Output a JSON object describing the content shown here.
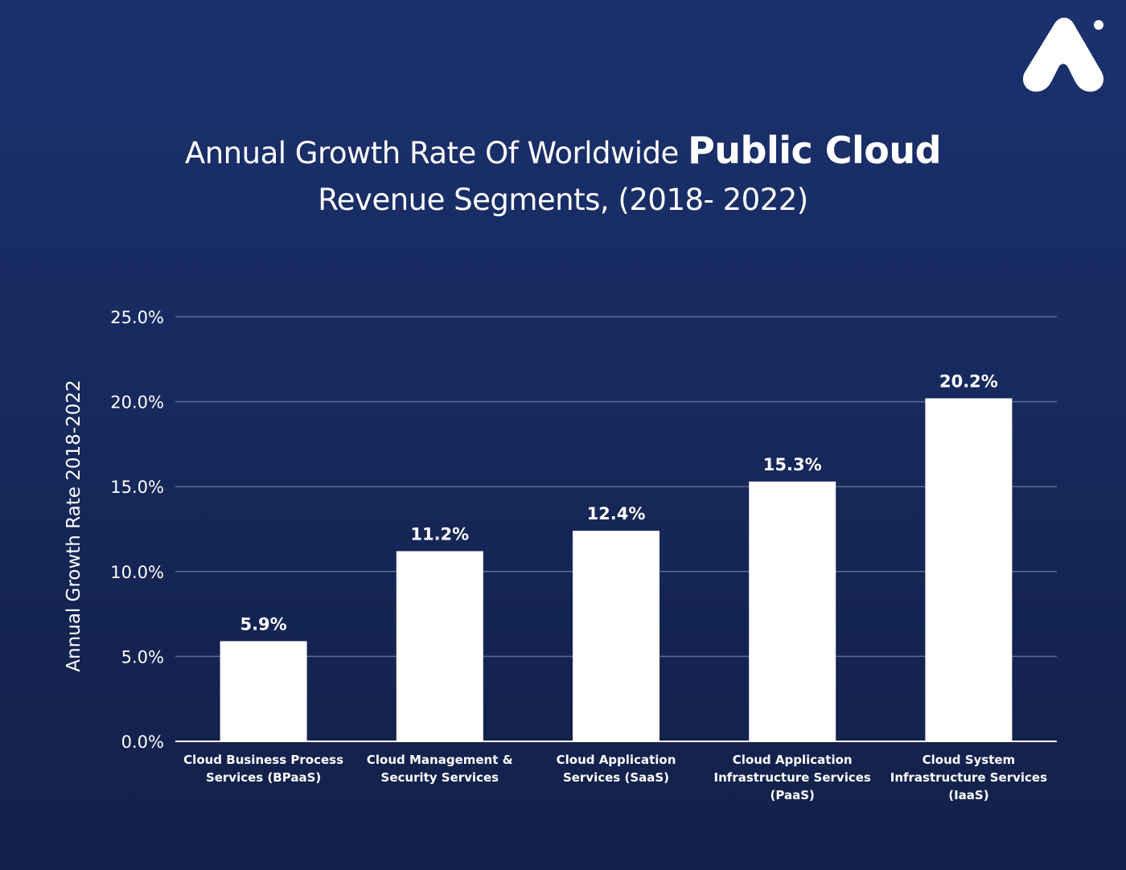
{
  "brand": {
    "logo_icon": "brand-logo-icon",
    "accent_color": "#ffffff"
  },
  "title": {
    "line1_regular": "Annual Growth Rate Of Worldwide ",
    "line1_strong": "Public Cloud",
    "line2": "Revenue Segments, (2018- 2022)"
  },
  "colors": {
    "background_top": "#1b316e",
    "background_bottom": "#13214a",
    "bar": "#ffffff",
    "gridline": "#5b6b96",
    "axis_line": "#ffffff"
  },
  "chart_data": {
    "type": "bar",
    "title": "Annual Growth Rate Of Worldwide Public Cloud Revenue Segments, (2018- 2022)",
    "xlabel": "",
    "ylabel": "Annual Growth Rate 2018-2022",
    "ylim": [
      0,
      25
    ],
    "yticks": [
      "0.0%",
      "5.0%",
      "10.0%",
      "15.0%",
      "20.0%",
      "25.0%"
    ],
    "ytick_values": [
      0,
      5,
      10,
      15,
      20,
      25
    ],
    "grid": true,
    "legend": "none",
    "categories": [
      [
        "Cloud Business Process",
        "Services (BPaaS)"
      ],
      [
        "Cloud Management &",
        "Security Services"
      ],
      [
        "Cloud Application",
        "Services (SaaS)"
      ],
      [
        "Cloud Application",
        "Infrastructure Services",
        "(PaaS)"
      ],
      [
        "Cloud System",
        "Infrastructure Services",
        "(IaaS)"
      ]
    ],
    "values": [
      5.9,
      11.2,
      12.4,
      15.3,
      20.2
    ],
    "value_labels": [
      "5.9%",
      "11.2%",
      "12.4%",
      "15.3%",
      "20.2%"
    ]
  }
}
